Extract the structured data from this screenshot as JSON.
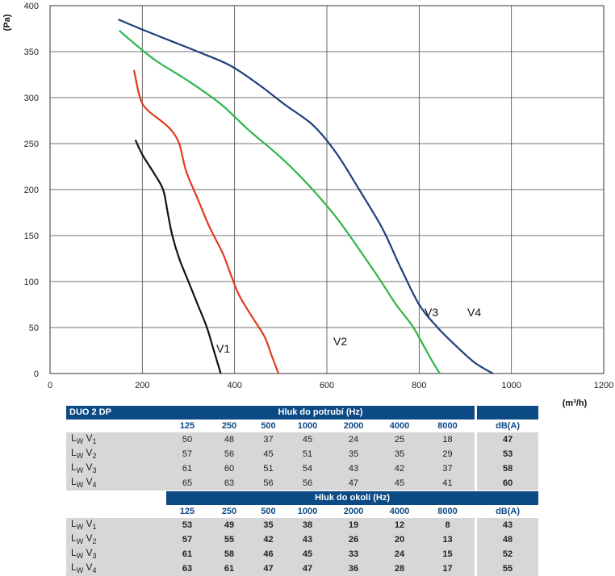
{
  "chart_data": {
    "type": "line",
    "xlabel": "(m³/h)",
    "ylabel": "(Pa)",
    "xlim": [
      0,
      1200
    ],
    "ylim": [
      0,
      400
    ],
    "xticks": [
      0,
      200,
      400,
      600,
      800,
      1000,
      1200
    ],
    "yticks": [
      0,
      50,
      100,
      150,
      200,
      250,
      300,
      350,
      400
    ],
    "grid": true,
    "series": [
      {
        "name": "V1",
        "color": "#111111",
        "points": [
          [
            185,
            254
          ],
          [
            200,
            238
          ],
          [
            225,
            218
          ],
          [
            245,
            200
          ],
          [
            255,
            175
          ],
          [
            265,
            150
          ],
          [
            280,
            125
          ],
          [
            300,
            100
          ],
          [
            320,
            75
          ],
          [
            340,
            50
          ],
          [
            355,
            25
          ],
          [
            370,
            0
          ]
        ]
      },
      {
        "name": "V2",
        "color": "#e03a1e",
        "points": [
          [
            182,
            330
          ],
          [
            195,
            300
          ],
          [
            210,
            287
          ],
          [
            240,
            275
          ],
          [
            262,
            265
          ],
          [
            280,
            250
          ],
          [
            295,
            220
          ],
          [
            320,
            190
          ],
          [
            345,
            160
          ],
          [
            375,
            130
          ],
          [
            390,
            110
          ],
          [
            410,
            85
          ],
          [
            440,
            60
          ],
          [
            465,
            40
          ],
          [
            480,
            20
          ],
          [
            495,
            0
          ]
        ]
      },
      {
        "name": "V3",
        "color": "#2fb54a",
        "points": [
          [
            150,
            373
          ],
          [
            180,
            360
          ],
          [
            230,
            340
          ],
          [
            300,
            318
          ],
          [
            370,
            293
          ],
          [
            430,
            265
          ],
          [
            500,
            235
          ],
          [
            560,
            205
          ],
          [
            620,
            170
          ],
          [
            670,
            135
          ],
          [
            715,
            102
          ],
          [
            750,
            75
          ],
          [
            785,
            52
          ],
          [
            810,
            30
          ],
          [
            830,
            12
          ],
          [
            845,
            0
          ]
        ]
      },
      {
        "name": "V4",
        "color": "#1f3f7a",
        "points": [
          [
            148,
            385
          ],
          [
            200,
            374
          ],
          [
            260,
            362
          ],
          [
            320,
            350
          ],
          [
            390,
            335
          ],
          [
            450,
            315
          ],
          [
            510,
            292
          ],
          [
            570,
            270
          ],
          [
            620,
            240
          ],
          [
            670,
            200
          ],
          [
            720,
            158
          ],
          [
            760,
            115
          ],
          [
            800,
            75
          ],
          [
            840,
            50
          ],
          [
            880,
            30
          ],
          [
            920,
            12
          ],
          [
            960,
            0
          ]
        ]
      }
    ]
  },
  "curve_labels": [
    "V1",
    "V2",
    "V3",
    "V4"
  ],
  "tables": {
    "model": "DUO 2 DP",
    "duct_title": "Hluk do potrubí (Hz)",
    "env_title": "Hluk do okolí (Hz)",
    "frequencies": [
      "125",
      "250",
      "500",
      "1000",
      "2000",
      "4000",
      "8000"
    ],
    "total_label": "dB(A)",
    "lw_prefix": "L",
    "lw_sub": "W",
    "duct": [
      {
        "v": "V",
        "n": "1",
        "values": [
          "50",
          "48",
          "37",
          "45",
          "24",
          "25",
          "18"
        ],
        "total": "47"
      },
      {
        "v": "V",
        "n": "2",
        "values": [
          "57",
          "56",
          "45",
          "51",
          "35",
          "35",
          "29"
        ],
        "total": "53"
      },
      {
        "v": "V",
        "n": "3",
        "values": [
          "61",
          "60",
          "51",
          "54",
          "43",
          "42",
          "37"
        ],
        "total": "58"
      },
      {
        "v": "V",
        "n": "4",
        "values": [
          "65",
          "63",
          "56",
          "56",
          "47",
          "45",
          "41"
        ],
        "total": "60"
      }
    ],
    "env": [
      {
        "v": "V",
        "n": "1",
        "values": [
          "53",
          "49",
          "35",
          "38",
          "19",
          "12",
          "8"
        ],
        "total": "43"
      },
      {
        "v": "V",
        "n": "2",
        "values": [
          "57",
          "55",
          "42",
          "43",
          "26",
          "20",
          "13"
        ],
        "total": "48"
      },
      {
        "v": "V",
        "n": "3",
        "values": [
          "61",
          "58",
          "46",
          "45",
          "33",
          "24",
          "15"
        ],
        "total": "52"
      },
      {
        "v": "V",
        "n": "4",
        "values": [
          "63",
          "61",
          "47",
          "47",
          "36",
          "28",
          "17"
        ],
        "total": "55"
      }
    ]
  }
}
